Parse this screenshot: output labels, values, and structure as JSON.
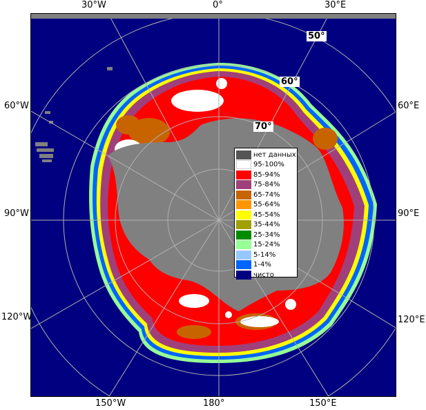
{
  "map": {
    "colors": {
      "ocean": "#000080",
      "land": "#808080",
      "no_data": "#555555",
      "grid": "#b0b0b0"
    },
    "edge_labels": {
      "top": [
        "30°W",
        "0°",
        "30°E"
      ],
      "left": [
        "60°W",
        "90°W",
        "120°W"
      ],
      "right": [
        "60°E",
        "90°E",
        "120°E"
      ],
      "bottom": [
        "150°W",
        "180°",
        "150°E"
      ]
    },
    "lat_labels": [
      "50°",
      "60°",
      "70°"
    ]
  },
  "legend": {
    "items": [
      {
        "label": "нет данных",
        "color": "#555555"
      },
      {
        "label": "95-100%",
        "color": "#ffffff"
      },
      {
        "label": "85-94%",
        "color": "#ff0000"
      },
      {
        "label": "75-84%",
        "color": "#a0407a"
      },
      {
        "label": "65-74%",
        "color": "#c86400"
      },
      {
        "label": "55-64%",
        "color": "#ff9600"
      },
      {
        "label": "45-54%",
        "color": "#ffff00"
      },
      {
        "label": "35-44%",
        "color": "#a0a000"
      },
      {
        "label": "25-34%",
        "color": "#008c00"
      },
      {
        "label": "15-24%",
        "color": "#96ff96"
      },
      {
        "label": "5-14%",
        "color": "#96c8ff"
      },
      {
        "label": "1-4%",
        "color": "#0064ff"
      },
      {
        "label": "чисто",
        "color": "#000080"
      }
    ]
  }
}
